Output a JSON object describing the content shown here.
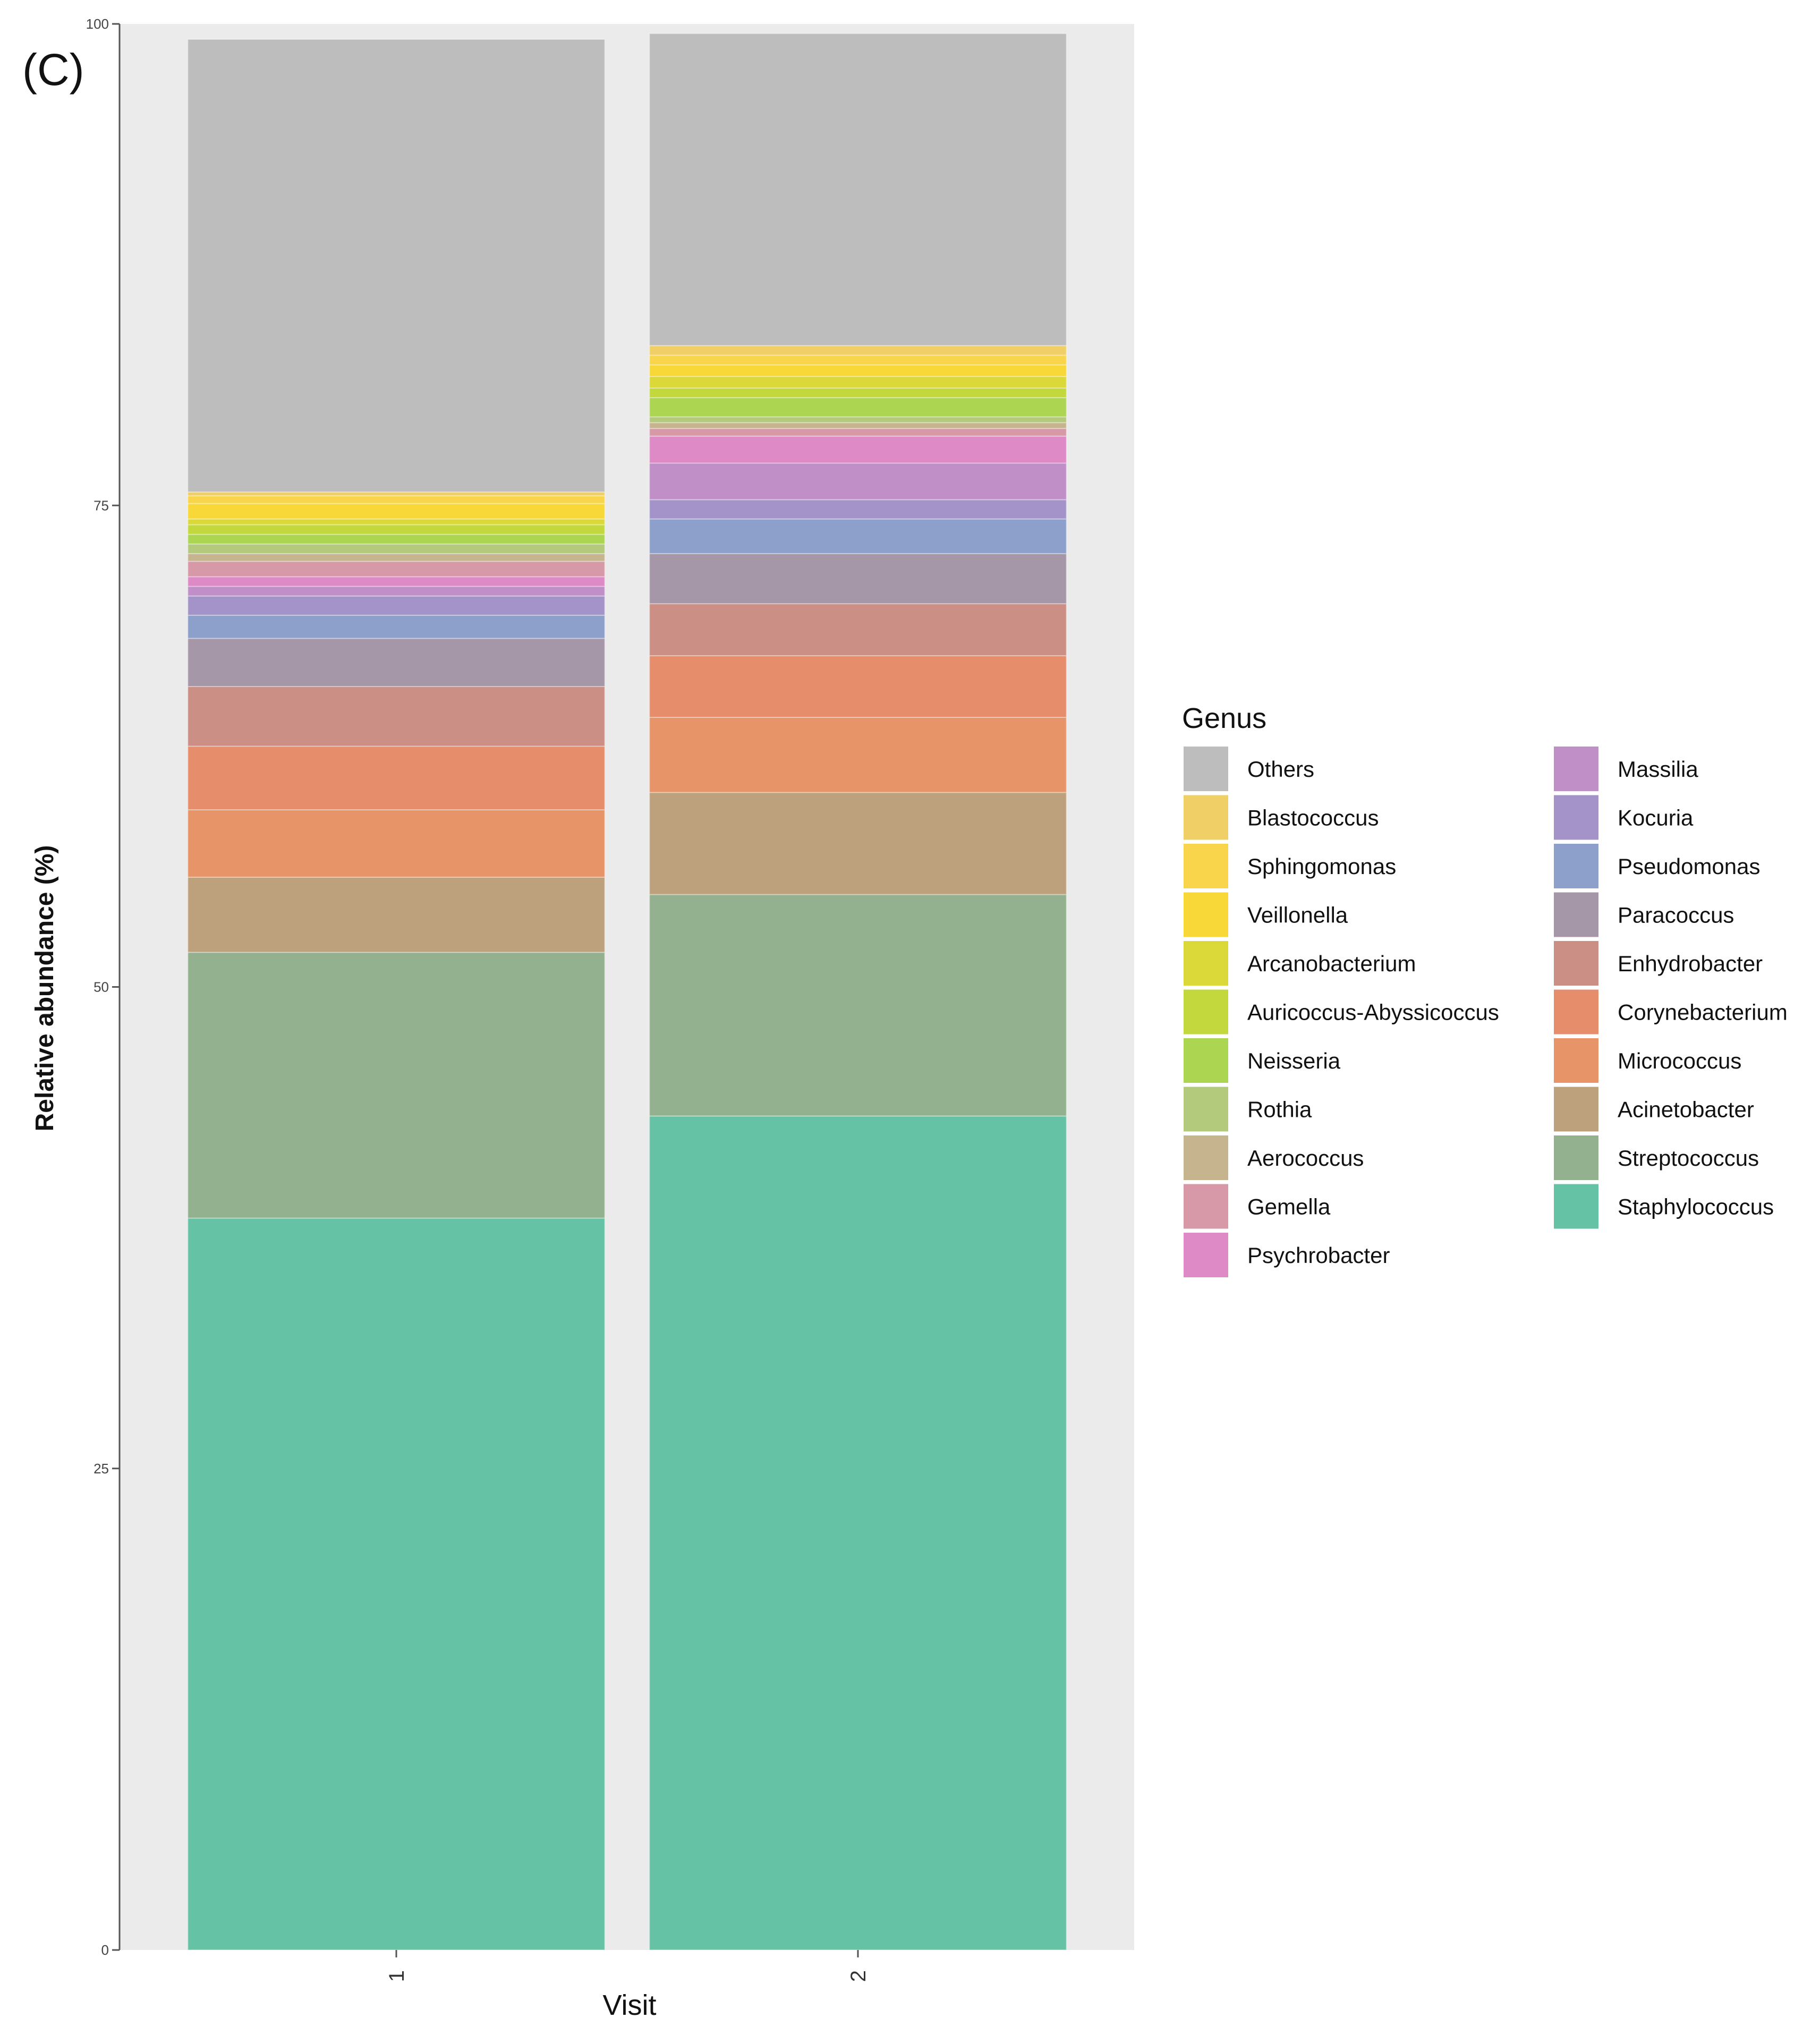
{
  "panel_label": "(C)",
  "chart_data": {
    "type": "bar",
    "stacked": true,
    "xlabel": "Visit",
    "ylabel": "Relative abundance (%)",
    "ylim": [
      0,
      100
    ],
    "yticks": [
      0,
      25,
      50,
      75,
      100
    ],
    "categories": [
      "1",
      "2"
    ],
    "legend_title": "Genus",
    "legend_position": "right",
    "series": [
      {
        "name": "Staphylococcus",
        "color": "#66c2a5",
        "values": [
          38.0,
          43.3
        ]
      },
      {
        "name": "Streptococcus",
        "color": "#94b18f",
        "values": [
          13.8,
          11.5
        ]
      },
      {
        "name": "Acinetobacter",
        "color": "#bca17c",
        "values": [
          3.9,
          5.3
        ]
      },
      {
        "name": "Micrococcus",
        "color": "#e79468",
        "values": [
          3.5,
          3.9
        ]
      },
      {
        "name": "Corynebacterium",
        "color": "#e68e6c",
        "values": [
          3.3,
          3.2
        ]
      },
      {
        "name": "Enhydrobacter",
        "color": "#cc8f86",
        "values": [
          3.1,
          2.7
        ]
      },
      {
        "name": "Paracoccus",
        "color": "#a597a7",
        "values": [
          2.5,
          2.6
        ]
      },
      {
        "name": "Pseudomonas",
        "color": "#8da0cb",
        "values": [
          1.2,
          1.8
        ]
      },
      {
        "name": "Kocuria",
        "color": "#a493c9",
        "values": [
          1.0,
          1.0
        ]
      },
      {
        "name": "Massilia",
        "color": "#c08fc8",
        "values": [
          0.5,
          1.9
        ]
      },
      {
        "name": "Psychrobacter",
        "color": "#dd8ac6",
        "values": [
          0.5,
          1.4
        ]
      },
      {
        "name": "Gemella",
        "color": "#d799a7",
        "values": [
          0.8,
          0.4
        ]
      },
      {
        "name": "Aerococcus",
        "color": "#c6b48e",
        "values": [
          0.4,
          0.3
        ]
      },
      {
        "name": "Rothia",
        "color": "#b3c97c",
        "values": [
          0.5,
          0.3
        ]
      },
      {
        "name": "Neisseria",
        "color": "#acd552",
        "values": [
          0.5,
          1.0
        ]
      },
      {
        "name": "Auricoccus-Abyssicoccus",
        "color": "#c3d83d",
        "values": [
          0.5,
          0.5
        ]
      },
      {
        "name": "Arcanobacterium",
        "color": "#dbd93a",
        "values": [
          0.3,
          0.6
        ]
      },
      {
        "name": "Veillonella",
        "color": "#f8d838",
        "values": [
          0.8,
          0.6
        ]
      },
      {
        "name": "Sphingomonas",
        "color": "#f8d54a",
        "values": [
          0.4,
          0.5
        ]
      },
      {
        "name": "Blastococcus",
        "color": "#efcf66",
        "values": [
          0.2,
          0.5
        ]
      },
      {
        "name": "Others",
        "color": "#bdbdbd",
        "values": [
          23.5,
          16.2
        ]
      }
    ],
    "legend_order": [
      "Others",
      "Blastococcus",
      "Sphingomonas",
      "Veillonella",
      "Arcanobacterium",
      "Auricoccus-Abyssicoccus",
      "Neisseria",
      "Rothia",
      "Aerococcus",
      "Gemella",
      "Psychrobacter",
      "Massilia",
      "Kocuria",
      "Pseudomonas",
      "Paracoccus",
      "Enhydrobacter",
      "Corynebacterium",
      "Micrococcus",
      "Acinetobacter",
      "Streptococcus",
      "Staphylococcus"
    ]
  }
}
